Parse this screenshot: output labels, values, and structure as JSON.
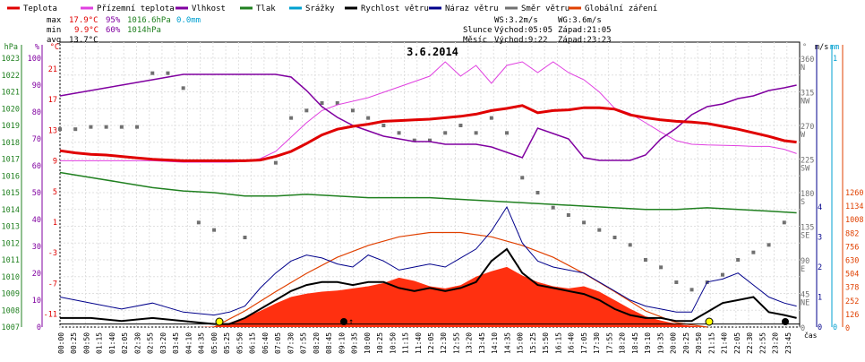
{
  "chart_data": {
    "type": "line",
    "title": "3.6.2014",
    "legend": [
      {
        "label": "Teplota",
        "color": "#e00000"
      },
      {
        "label": "Přízemní teplota",
        "color": "#e040e0"
      },
      {
        "label": "Vlhkost",
        "color": "#8000a0"
      },
      {
        "label": "Tlak",
        "color": "#208020"
      },
      {
        "label": "Srážky",
        "color": "#00a0d0"
      },
      {
        "label": "Rychlost větru",
        "color": "#000000"
      },
      {
        "label": "Náraz větru",
        "color": "#00008b"
      },
      {
        "label": "Směr větru",
        "color": "#707070"
      },
      {
        "label": "Globální záření",
        "color": "#e04000"
      }
    ],
    "stats": {
      "max": {
        "label": "max",
        "temp": "17.9°C",
        "hum": "95%",
        "press": "1016.6hPa",
        "rain": "0.0mm"
      },
      "min": {
        "label": "min",
        "temp": "9.9°C",
        "hum": "60%",
        "press": "1014hPa"
      },
      "avg": {
        "label": "avg",
        "temp": "13.7°C"
      }
    },
    "astro": {
      "ws": "WS:3.2m/s",
      "wg": "WG:3.6m/s",
      "sun_label": "Slunce",
      "sun_rise": "Východ:05:05",
      "sun_set": "Západ:21:05",
      "moon_label": "Měsíc",
      "moon_rise": "Východ:9:22",
      "moon_set": "Západ:23:23"
    },
    "axes": {
      "hpa": {
        "label": "hPa",
        "ticks": [
          "1023",
          "1022",
          "1021",
          "1020",
          "1019",
          "1018",
          "1017",
          "1016",
          "1015",
          "1014",
          "1013",
          "1012",
          "1011",
          "1010",
          "1009",
          "1008",
          "1007"
        ]
      },
      "pct": {
        "label": "%",
        "ticks": [
          "100",
          "90",
          "80",
          "70",
          "60",
          "50",
          "40",
          "30",
          "20",
          "10",
          "0"
        ]
      },
      "celsius": {
        "label": "°C",
        "ticks": [
          "21",
          "17",
          "13",
          "9",
          "5",
          "1",
          "-3",
          "-7",
          "-11"
        ]
      },
      "deg": {
        "label": "°",
        "ticks": [
          "360",
          "315",
          "270",
          "225",
          "180",
          "135",
          "90",
          "45",
          "0"
        ],
        "dirs": [
          "N",
          "NW",
          "W",
          "SW",
          "S",
          "SE",
          "E",
          "NE",
          ""
        ]
      },
      "ms": {
        "label": "m/s",
        "ticks": [
          "4",
          "3",
          "2",
          "1",
          "0"
        ]
      },
      "mm": {
        "label": "mm",
        "ticks": [
          "1",
          "0"
        ]
      },
      "wm2": {
        "label": "W/m²",
        "ticks": [
          "1260",
          "1134",
          "1008",
          "882",
          "756",
          "630",
          "504",
          "378",
          "252",
          "126",
          "0"
        ]
      },
      "x_label": "čas",
      "x_ticks": [
        "00:00",
        "00:25",
        "00:50",
        "01:15",
        "01:40",
        "02:05",
        "02:30",
        "02:55",
        "03:20",
        "03:45",
        "04:10",
        "04:35",
        "05:00",
        "05:25",
        "05:50",
        "06:15",
        "06:40",
        "07:05",
        "07:30",
        "07:55",
        "08:20",
        "08:45",
        "09:10",
        "09:35",
        "10:00",
        "10:25",
        "10:50",
        "11:15",
        "11:40",
        "12:05",
        "12:30",
        "12:55",
        "13:20",
        "13:45",
        "14:10",
        "14:35",
        "15:00",
        "15:25",
        "15:50",
        "16:15",
        "16:40",
        "17:05",
        "17:30",
        "17:55",
        "18:20",
        "18:45",
        "19:10",
        "19:35",
        "20:00",
        "20:25",
        "20:50",
        "21:15",
        "21:40",
        "22:05",
        "22:30",
        "22:55",
        "23:20",
        "23:45"
      ]
    },
    "series": {
      "temperature": {
        "x": [
          0,
          0.5,
          1,
          1.5,
          2,
          2.5,
          3,
          3.5,
          4,
          4.5,
          5,
          5.5,
          6,
          6.5,
          7,
          7.5,
          8,
          8.5,
          9,
          9.5,
          10,
          10.5,
          11,
          11.5,
          12,
          12.5,
          13,
          13.5,
          14,
          14.5,
          15,
          15.5,
          16,
          16.5,
          17,
          17.5,
          18,
          18.5,
          19,
          19.5,
          20,
          20.5,
          21,
          21.5,
          22,
          22.5,
          23,
          23.5,
          23.9
        ],
        "y": [
          11.6,
          11.3,
          11.1,
          11,
          10.8,
          10.6,
          10.4,
          10.3,
          10.2,
          10.2,
          10.2,
          10.2,
          10.2,
          10.3,
          10.8,
          11.5,
          12.6,
          13.8,
          14.6,
          15.0,
          15.3,
          15.7,
          15.8,
          15.9,
          16.0,
          16.2,
          16.4,
          16.7,
          17.2,
          17.5,
          17.9,
          16.9,
          17.2,
          17.3,
          17.6,
          17.6,
          17.4,
          16.6,
          16.2,
          15.9,
          15.7,
          15.6,
          15.4,
          15.0,
          14.6,
          14.1,
          13.6,
          13.0,
          12.8
        ]
      },
      "ground_temperature": {
        "x": [
          0,
          1,
          2,
          3,
          4,
          5,
          5.5,
          6,
          6.5,
          7,
          7.5,
          8,
          8.5,
          9,
          10,
          11,
          12,
          12.5,
          13,
          13.5,
          14,
          14.5,
          15,
          15.5,
          16,
          16.5,
          17,
          17.5,
          18,
          18.5,
          19,
          19.5,
          20,
          20.5,
          21,
          22,
          22.5,
          23,
          23.5,
          23.9
        ],
        "y": [
          10.2,
          10.2,
          10.2,
          10.2,
          10.0,
          10.0,
          10.0,
          10.1,
          10.5,
          11.5,
          13.5,
          15.5,
          17.2,
          18.0,
          19.0,
          20.5,
          22.0,
          24.0,
          22.0,
          23.5,
          21.0,
          23.5,
          24.0,
          22.5,
          24.0,
          22.5,
          21.5,
          19.8,
          17.5,
          16.8,
          15.5,
          14.2,
          13.0,
          12.5,
          12.4,
          12.3,
          12.2,
          12.2,
          11.8,
          11.2
        ]
      },
      "humidity": {
        "x": [
          0,
          0.5,
          1,
          1.5,
          2,
          2.5,
          3,
          3.5,
          4,
          4.5,
          5,
          5.5,
          6,
          6.5,
          7,
          7.5,
          8,
          8.5,
          9,
          9.5,
          10,
          10.5,
          11,
          11.5,
          12,
          12.5,
          13,
          13.5,
          14,
          14.5,
          15,
          15.5,
          16,
          16.5,
          17,
          17.5,
          18,
          18.5,
          19,
          19.5,
          20,
          20.5,
          21,
          21.5,
          22,
          22.5,
          23,
          23.5,
          23.9
        ],
        "y": [
          86,
          87,
          88,
          89,
          90,
          91,
          92,
          93,
          94,
          94,
          94,
          94,
          94,
          94,
          94,
          93,
          88,
          82,
          78,
          75,
          73,
          71,
          70,
          69,
          69,
          68,
          68,
          68,
          67,
          65,
          63,
          74,
          72,
          70,
          63,
          62,
          62,
          62,
          64,
          70,
          74,
          79,
          82,
          83,
          85,
          86,
          88,
          89,
          90
        ]
      },
      "pressure": {
        "x": [
          0,
          1,
          2,
          3,
          4,
          5,
          6,
          7,
          8,
          9,
          10,
          11,
          12,
          13,
          14,
          15,
          16,
          17,
          18,
          19,
          20,
          21,
          22,
          23,
          23.9
        ],
        "y": [
          1016.2,
          1015.9,
          1015.6,
          1015.3,
          1015.1,
          1015.0,
          1014.8,
          1014.8,
          1014.9,
          1014.8,
          1014.7,
          1014.7,
          1014.7,
          1014.6,
          1014.5,
          1014.4,
          1014.3,
          1014.2,
          1014.1,
          1014.0,
          1014.0,
          1014.1,
          1014.0,
          1013.9,
          1013.8
        ]
      },
      "wind_speed": {
        "x": [
          0,
          1,
          2,
          3,
          4,
          5,
          5.5,
          6,
          6.5,
          7,
          7.5,
          8,
          8.5,
          9,
          9.5,
          10,
          10.5,
          11,
          11.5,
          12,
          12.5,
          13,
          13.5,
          14,
          14.5,
          15,
          15.5,
          16,
          16.5,
          17,
          17.5,
          18,
          18.5,
          19,
          19.5,
          20,
          20.5,
          21,
          21.5,
          22,
          22.5,
          23,
          23.5,
          23.9
        ],
        "y": [
          0.3,
          0.3,
          0.2,
          0.3,
          0.2,
          0.1,
          0.1,
          0.3,
          0.6,
          0.9,
          1.2,
          1.4,
          1.5,
          1.5,
          1.4,
          1.5,
          1.5,
          1.3,
          1.2,
          1.3,
          1.2,
          1.3,
          1.5,
          2.2,
          2.6,
          1.8,
          1.4,
          1.3,
          1.2,
          1.1,
          0.9,
          0.6,
          0.4,
          0.3,
          0.3,
          0.2,
          0.2,
          0.5,
          0.8,
          0.9,
          1.0,
          0.5,
          0.4,
          0.3
        ]
      },
      "wind_gust": {
        "x": [
          0,
          1,
          2,
          3,
          4,
          5,
          5.5,
          6,
          6.5,
          7,
          7.5,
          8,
          8.5,
          9,
          9.5,
          10,
          10.5,
          11,
          11.5,
          12,
          12.5,
          13,
          13.5,
          14,
          14.5,
          15,
          15.5,
          16,
          16.5,
          17,
          17.5,
          18,
          18.5,
          19,
          19.5,
          20,
          20.5,
          21,
          21.5,
          22,
          22.5,
          23,
          23.5,
          23.9
        ],
        "y": [
          1.0,
          0.8,
          0.6,
          0.8,
          0.5,
          0.4,
          0.5,
          0.7,
          1.3,
          1.8,
          2.2,
          2.4,
          2.3,
          2.1,
          2.0,
          2.4,
          2.2,
          1.9,
          2.0,
          2.1,
          2.0,
          2.3,
          2.6,
          3.2,
          4.0,
          2.8,
          2.2,
          2.0,
          1.9,
          1.8,
          1.5,
          1.2,
          0.9,
          0.7,
          0.6,
          0.5,
          0.5,
          1.5,
          1.6,
          1.8,
          1.4,
          1.0,
          0.8,
          0.7
        ]
      },
      "wind_direction": {
        "x": [
          0,
          0.5,
          1,
          1.5,
          2,
          2.5,
          3,
          3.5,
          4,
          4.5,
          5,
          6,
          7,
          7.5,
          8,
          8.5,
          9,
          9.5,
          10,
          10.5,
          11,
          11.5,
          12,
          12.5,
          13,
          13.5,
          14,
          14.5,
          15,
          15.5,
          16,
          16.5,
          17,
          17.5,
          18,
          18.5,
          19,
          19.5,
          20,
          20.5,
          21,
          21.5,
          22,
          22.5,
          23,
          23.5
        ],
        "y": [
          265,
          265,
          268,
          268,
          268,
          268,
          340,
          340,
          320,
          140,
          130,
          120,
          220,
          280,
          290,
          300,
          300,
          290,
          280,
          270,
          260,
          250,
          250,
          260,
          270,
          260,
          280,
          260,
          200,
          180,
          160,
          150,
          140,
          130,
          120,
          110,
          90,
          80,
          60,
          50,
          60,
          70,
          90,
          100,
          110,
          140
        ]
      },
      "global_radiation": {
        "x": [
          0,
          4.5,
          5,
          5.5,
          6,
          6.5,
          7,
          7.5,
          8,
          8.5,
          9,
          9.5,
          10,
          10.5,
          11,
          11.5,
          12,
          12.5,
          13,
          13.5,
          14,
          14.5,
          15,
          15.5,
          16,
          16.5,
          17,
          17.5,
          18,
          18.5,
          19,
          19.5,
          20,
          20.5,
          21,
          23.9
        ],
        "y": [
          0,
          0,
          5,
          40,
          90,
          150,
          220,
          280,
          310,
          330,
          340,
          360,
          380,
          410,
          460,
          430,
          380,
          360,
          390,
          470,
          520,
          560,
          480,
          420,
          380,
          360,
          380,
          330,
          250,
          170,
          100,
          60,
          30,
          10,
          0,
          0
        ]
      },
      "clear_sky_radiation": {
        "x": [
          5,
          6,
          7,
          8,
          9,
          10,
          11,
          12,
          13,
          14,
          15,
          16,
          17,
          18,
          19,
          20,
          21
        ],
        "y": [
          0,
          150,
          330,
          500,
          650,
          760,
          840,
          880,
          880,
          840,
          760,
          650,
          500,
          330,
          150,
          40,
          0
        ]
      }
    }
  }
}
